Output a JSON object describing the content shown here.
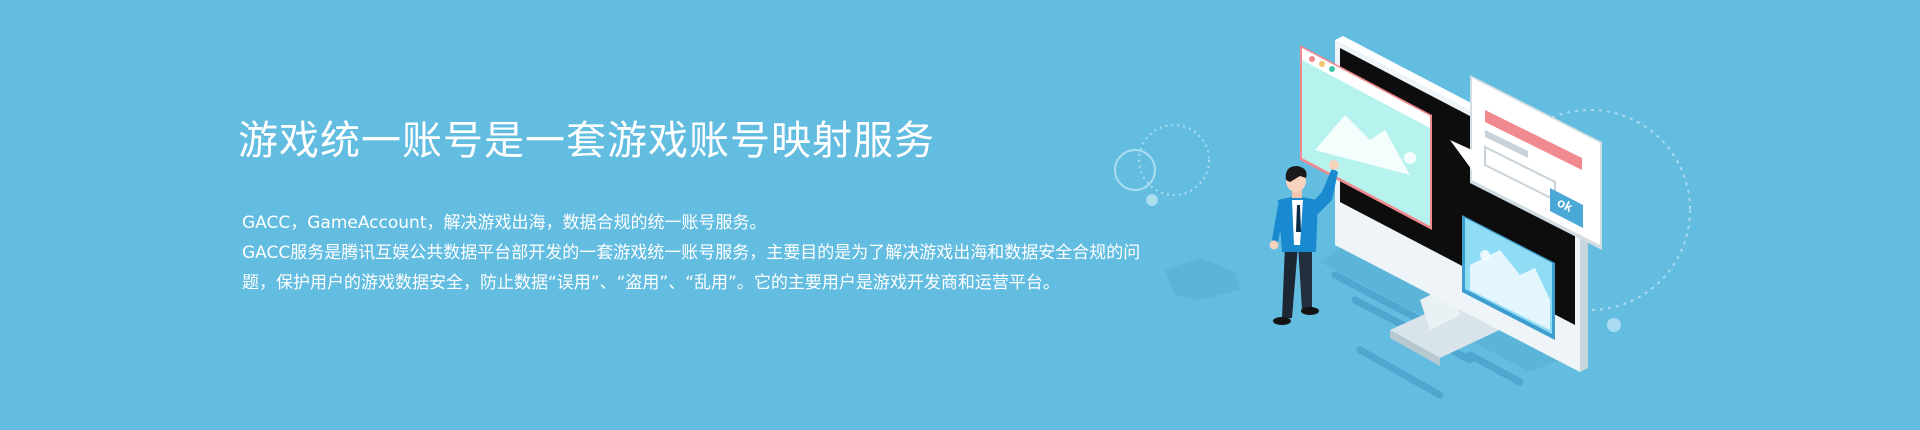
{
  "hero": {
    "title": "游戏统一账号是一套游戏账号映射服务",
    "line1": "GACC，GameAccount，解决游戏出海，数据合规的统一账号服务。",
    "line2": "GACC服务是腾讯互娱公共数据平台部开发的一套游戏统一账号服务，主要目的是为了解决游戏出海和数据安全合规的问题，保护用户的游戏数据安全，防止数据“误用”、“盗用”、“乱用”。它的主要用户是游戏开发商和运营平台。"
  },
  "illustration": {
    "ok_label": "ok",
    "colors": {
      "background": "#63bde1",
      "screen": "#0d0d0d",
      "card_mint": "#b6f3ef",
      "card_pink": "#f08a8e",
      "accent_blue": "#4aa8d6",
      "suit_blue": "#1a8ad0"
    }
  }
}
